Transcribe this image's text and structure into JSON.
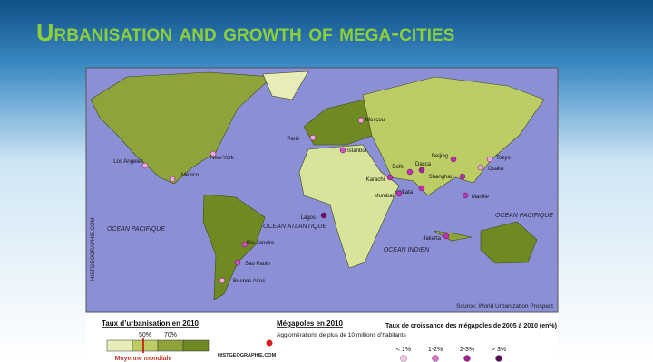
{
  "header": {
    "title": "Urbanisation and growth of mega-cities"
  },
  "map": {
    "cities": [
      "Moscou",
      "Paris",
      "Istanbul",
      "Karachi",
      "Delhi",
      "Dacca",
      "Kolkata",
      "Mumbai",
      "Beijing",
      "Tokyo",
      "Osaka",
      "Shanghai",
      "Manille",
      "Jakarta",
      "Lagos",
      "Los Angeles",
      "New-York",
      "Mexico",
      "Rio Janeiro",
      "Sao Paulo",
      "Buenos Aires"
    ],
    "oceans": [
      "OCEAN PACIFIQUE",
      "OCEAN ATLANTIQUE",
      "OCEAN INDIEN",
      "OCEAN PACIFIQUE"
    ],
    "watermark": "HISTGEOGRAPHIE.COM",
    "source": "Source: World Urbanization Prospect"
  },
  "legend": {
    "urbanisation": {
      "title": "Taux d’urbanisation en 2010",
      "ticks": [
        "50%",
        "70%"
      ],
      "note": "Moyenne mondiale"
    },
    "megacities": {
      "title": "Mégapoles en 2010",
      "item": "Agglomérations de plus de 10 millions d’habitants",
      "credit": "HISTGEOGRAPHIE.COM"
    },
    "growth": {
      "title": "Taux de croissance des mégapoles de 2005 à 2010 (en%)",
      "classes": [
        "< 1%",
        "1-2%",
        "2-3%",
        "> 3%"
      ]
    }
  }
}
